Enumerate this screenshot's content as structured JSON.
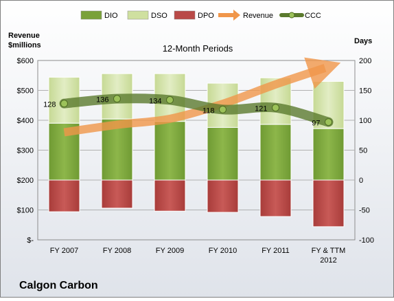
{
  "company": "Calgon Carbon",
  "chart_data": {
    "type": "bar",
    "title": "12-Month Periods",
    "left_axis_label": [
      "Revenue",
      "$millions"
    ],
    "right_axis_label": "Days",
    "categories": [
      "FY 2007",
      "FY 2008",
      "FY 2009",
      "FY 2010",
      "FY 2011",
      "FY & TTM|2012"
    ],
    "left_ticks": [
      "$-",
      "$100",
      "$200",
      "$300",
      "$400",
      "$500",
      "$600"
    ],
    "left_ylim": [
      0,
      600
    ],
    "right_ticks": [
      "-100",
      "-50",
      "0",
      "50",
      "100",
      "150",
      "200"
    ],
    "right_ylim": [
      -100,
      200
    ],
    "legend_position": "top",
    "legend": [
      "DIO",
      "DSO",
      "DPO",
      "Revenue",
      "CCC"
    ],
    "series": [
      {
        "name": "DIO",
        "axis": "right",
        "values": [
          95,
          102,
          98,
          88,
          93,
          86
        ],
        "color": "#7aa13a"
      },
      {
        "name": "DSO",
        "axis": "right",
        "values": [
          77,
          76,
          80,
          74,
          78,
          79
        ],
        "color": "#cfe0a0"
      },
      {
        "name": "DPO",
        "axis": "right",
        "values": [
          -53,
          -47,
          -52,
          -54,
          -61,
          -78
        ],
        "color": "#b94a48"
      },
      {
        "name": "Revenue",
        "axis": "left",
        "values": [
          360,
          385,
          405,
          455,
          520,
          575
        ],
        "color": "#f0964a"
      },
      {
        "name": "CCC",
        "axis": "right",
        "values": [
          128,
          136,
          134,
          118,
          121,
          97
        ],
        "color": "#5b7a2e"
      }
    ],
    "ccc_labels": [
      "128",
      "136",
      "134",
      "118",
      "121",
      "97"
    ]
  }
}
